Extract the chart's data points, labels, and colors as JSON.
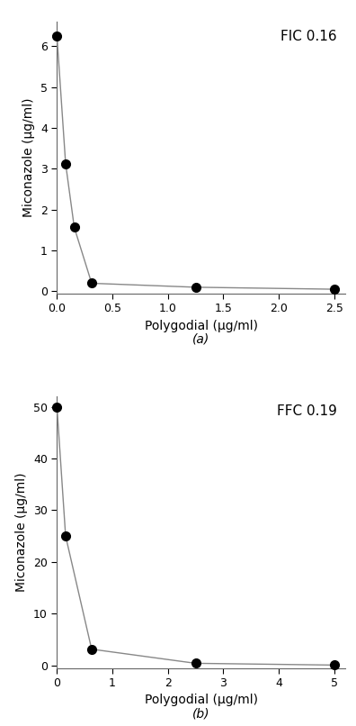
{
  "plot_a": {
    "x": [
      0.0,
      0.078,
      0.156,
      0.313,
      1.25,
      2.5
    ],
    "y": [
      6.25,
      3.125,
      1.5625,
      0.195,
      0.098,
      0.049
    ],
    "xlabel": "Polygodial (μg/ml)",
    "ylabel": "Miconazole (μg/ml)",
    "annotation": "FIC 0.16",
    "label": "(a)",
    "xlim": [
      0,
      2.6
    ],
    "ylim": [
      -0.05,
      6.6
    ],
    "xticks": [
      0.0,
      0.5,
      1.0,
      1.5,
      2.0,
      2.5
    ],
    "yticks": [
      0,
      1,
      2,
      3,
      4,
      5,
      6
    ]
  },
  "plot_b": {
    "x": [
      0.0,
      0.156,
      0.625,
      2.5,
      5.0
    ],
    "y": [
      50.0,
      25.0,
      3.125,
      0.391,
      0.049
    ],
    "xlabel": "Polygodial (μg/ml)",
    "ylabel": "Miconazole (μg/ml)",
    "annotation": "FFC 0.19",
    "label": "(b)",
    "xlim": [
      0,
      5.2
    ],
    "ylim": [
      -0.5,
      52
    ],
    "xticks": [
      0,
      1,
      2,
      3,
      4,
      5
    ],
    "yticks": [
      0,
      10,
      20,
      30,
      40,
      50
    ]
  },
  "line_color": "#888888",
  "marker_color": "#000000",
  "marker_size": 7,
  "line_width": 1.0,
  "font_size_label": 10,
  "font_size_tick": 9,
  "font_size_annotation": 11,
  "font_size_sublabel": 10,
  "background_color": "#ffffff"
}
